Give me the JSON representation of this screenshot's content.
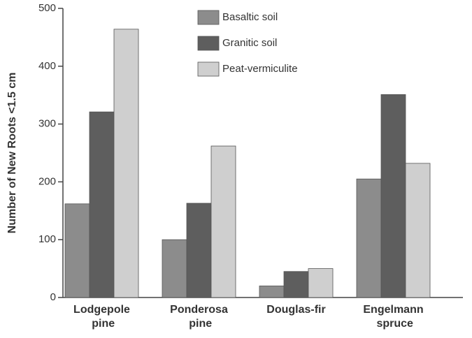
{
  "chart_data": {
    "type": "bar",
    "y_label": "Number of New Roots <1.5 cm",
    "categories": [
      "Lodgepole pine",
      "Ponderosa pine",
      "Douglas-fir",
      "Engelmann spruce"
    ],
    "series": [
      {
        "name": "Basaltic soil",
        "color": "#8c8c8c",
        "values": [
          162,
          100,
          20,
          205
        ]
      },
      {
        "name": "Granitic soil",
        "color": "#5e5e5e",
        "values": [
          321,
          163,
          45,
          351
        ]
      },
      {
        "name": "Peat-vermiculite",
        "color": "#cfcfcf",
        "values": [
          464,
          262,
          50,
          232
        ]
      }
    ],
    "ylim": [
      0,
      500
    ],
    "yticks": [
      0,
      100,
      200,
      300,
      400,
      500
    ],
    "legend": "top"
  }
}
